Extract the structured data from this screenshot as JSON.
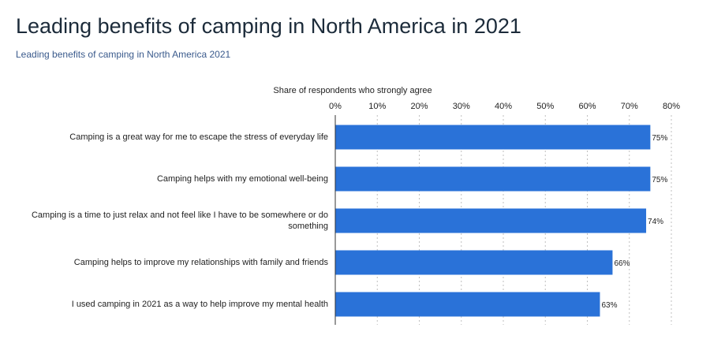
{
  "page": {
    "title": "Leading benefits of camping in North America in 2021",
    "subtitle": "Leading benefits of camping in North America 2021"
  },
  "chart_data": {
    "type": "bar",
    "orientation": "horizontal",
    "xlabel": "Share of respondents who strongly agree",
    "xlim": [
      0,
      80
    ],
    "ticks": [
      "0%",
      "10%",
      "20%",
      "30%",
      "40%",
      "50%",
      "60%",
      "70%",
      "80%"
    ],
    "tick_values": [
      0,
      10,
      20,
      30,
      40,
      50,
      60,
      70,
      80
    ],
    "categories": [
      "Camping is a great way for me to escape the stress of everyday life",
      "Camping helps with my emotional well-being",
      "Camping is a time to just relax and not feel like I have to be somewhere or do something",
      "Camping helps to improve my relationships with family and friends",
      "I used camping in 2021 as a way to help improve my mental health"
    ],
    "values": [
      75,
      75,
      74,
      66,
      63
    ],
    "value_labels": [
      "75%",
      "75%",
      "74%",
      "66%",
      "63%"
    ],
    "bar_color": "#2a72d8",
    "grid": true
  }
}
